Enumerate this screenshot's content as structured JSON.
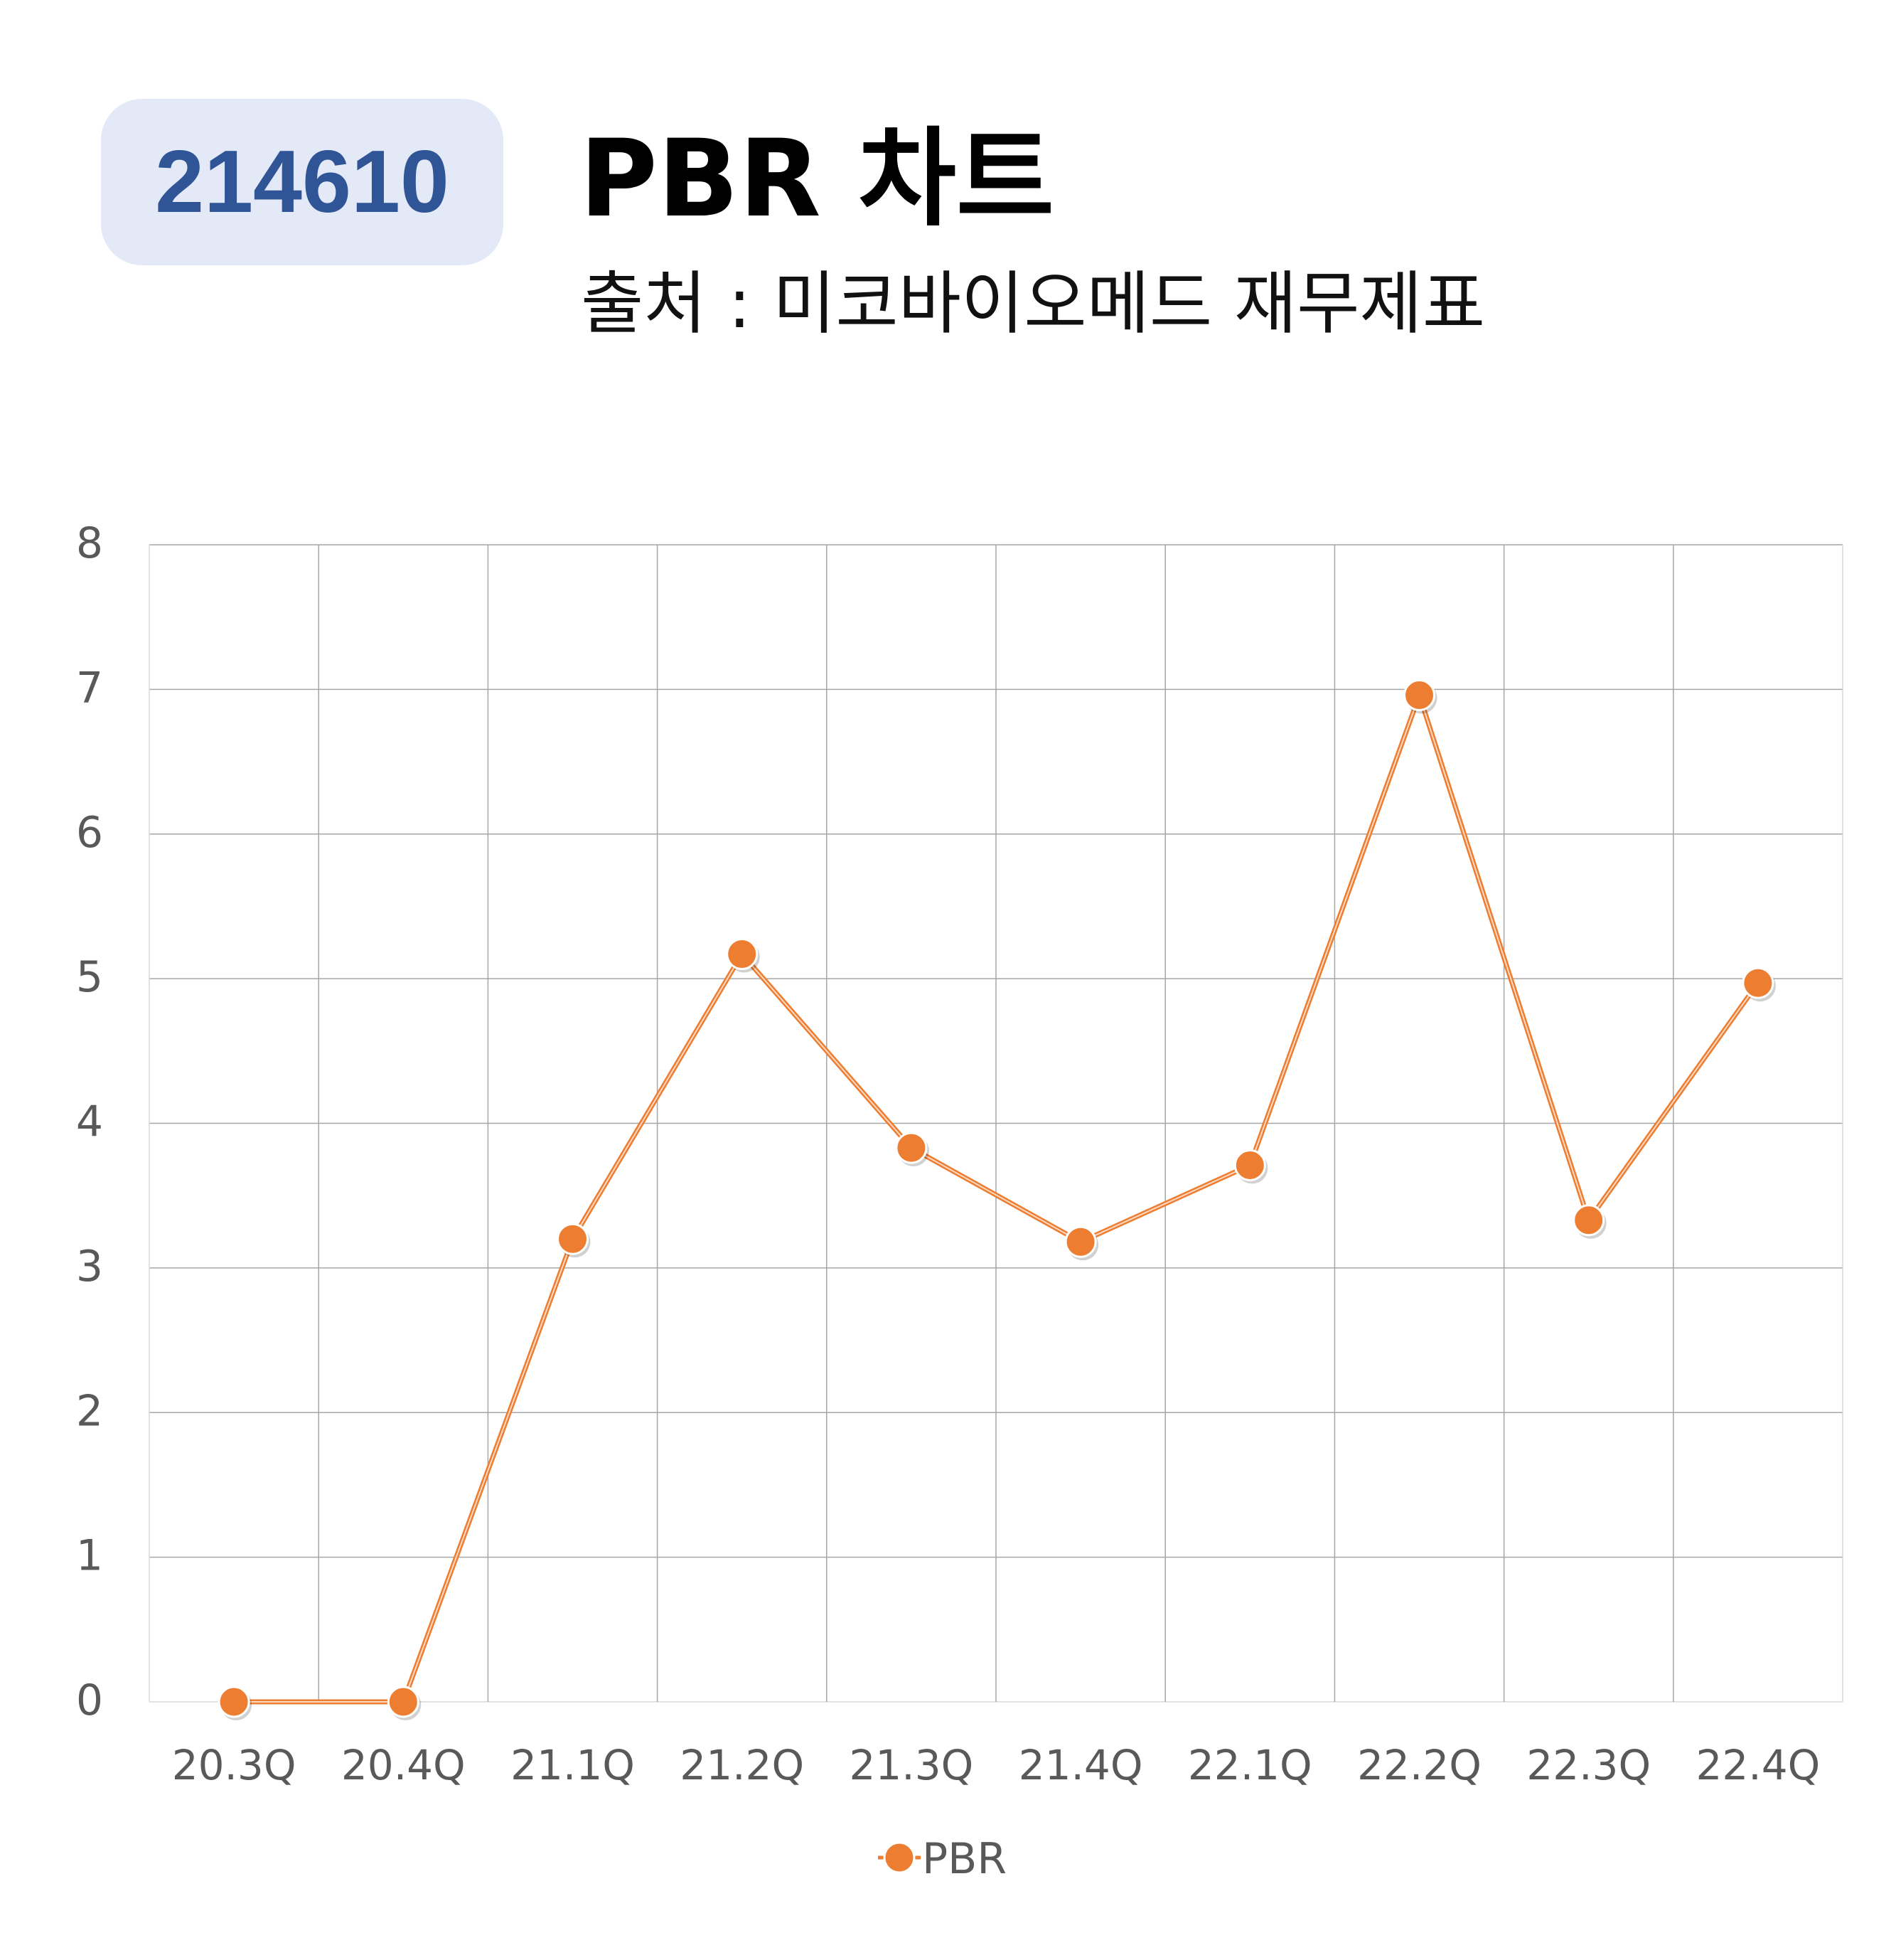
{
  "header": {
    "code": "214610",
    "title": "PBR 차트",
    "subtitle": "출처 : 미코바이오메드 재무제표"
  },
  "colors": {
    "series": "#ed7d31",
    "badge_bg": "#e3e9f6",
    "badge_text": "#2f5597",
    "grid": "#a6a6a6",
    "axis_text": "#595959"
  },
  "chart_data": {
    "type": "line",
    "title": "",
    "xlabel": "",
    "ylabel": "",
    "categories": [
      "20.3Q",
      "20.4Q",
      "21.1Q",
      "21.2Q",
      "21.3Q",
      "21.4Q",
      "22.1Q",
      "22.2Q",
      "22.3Q",
      "22.4Q"
    ],
    "series": [
      {
        "name": "PBR",
        "values": [
          0,
          0,
          3.2,
          5.17,
          3.83,
          3.18,
          3.71,
          6.96,
          3.33,
          4.97
        ]
      }
    ],
    "ylim": [
      0,
      8
    ],
    "yticks": [
      "0",
      "1",
      "2",
      "3",
      "4",
      "5",
      "6",
      "7",
      "8"
    ],
    "grid": true,
    "legend": "bottom"
  }
}
